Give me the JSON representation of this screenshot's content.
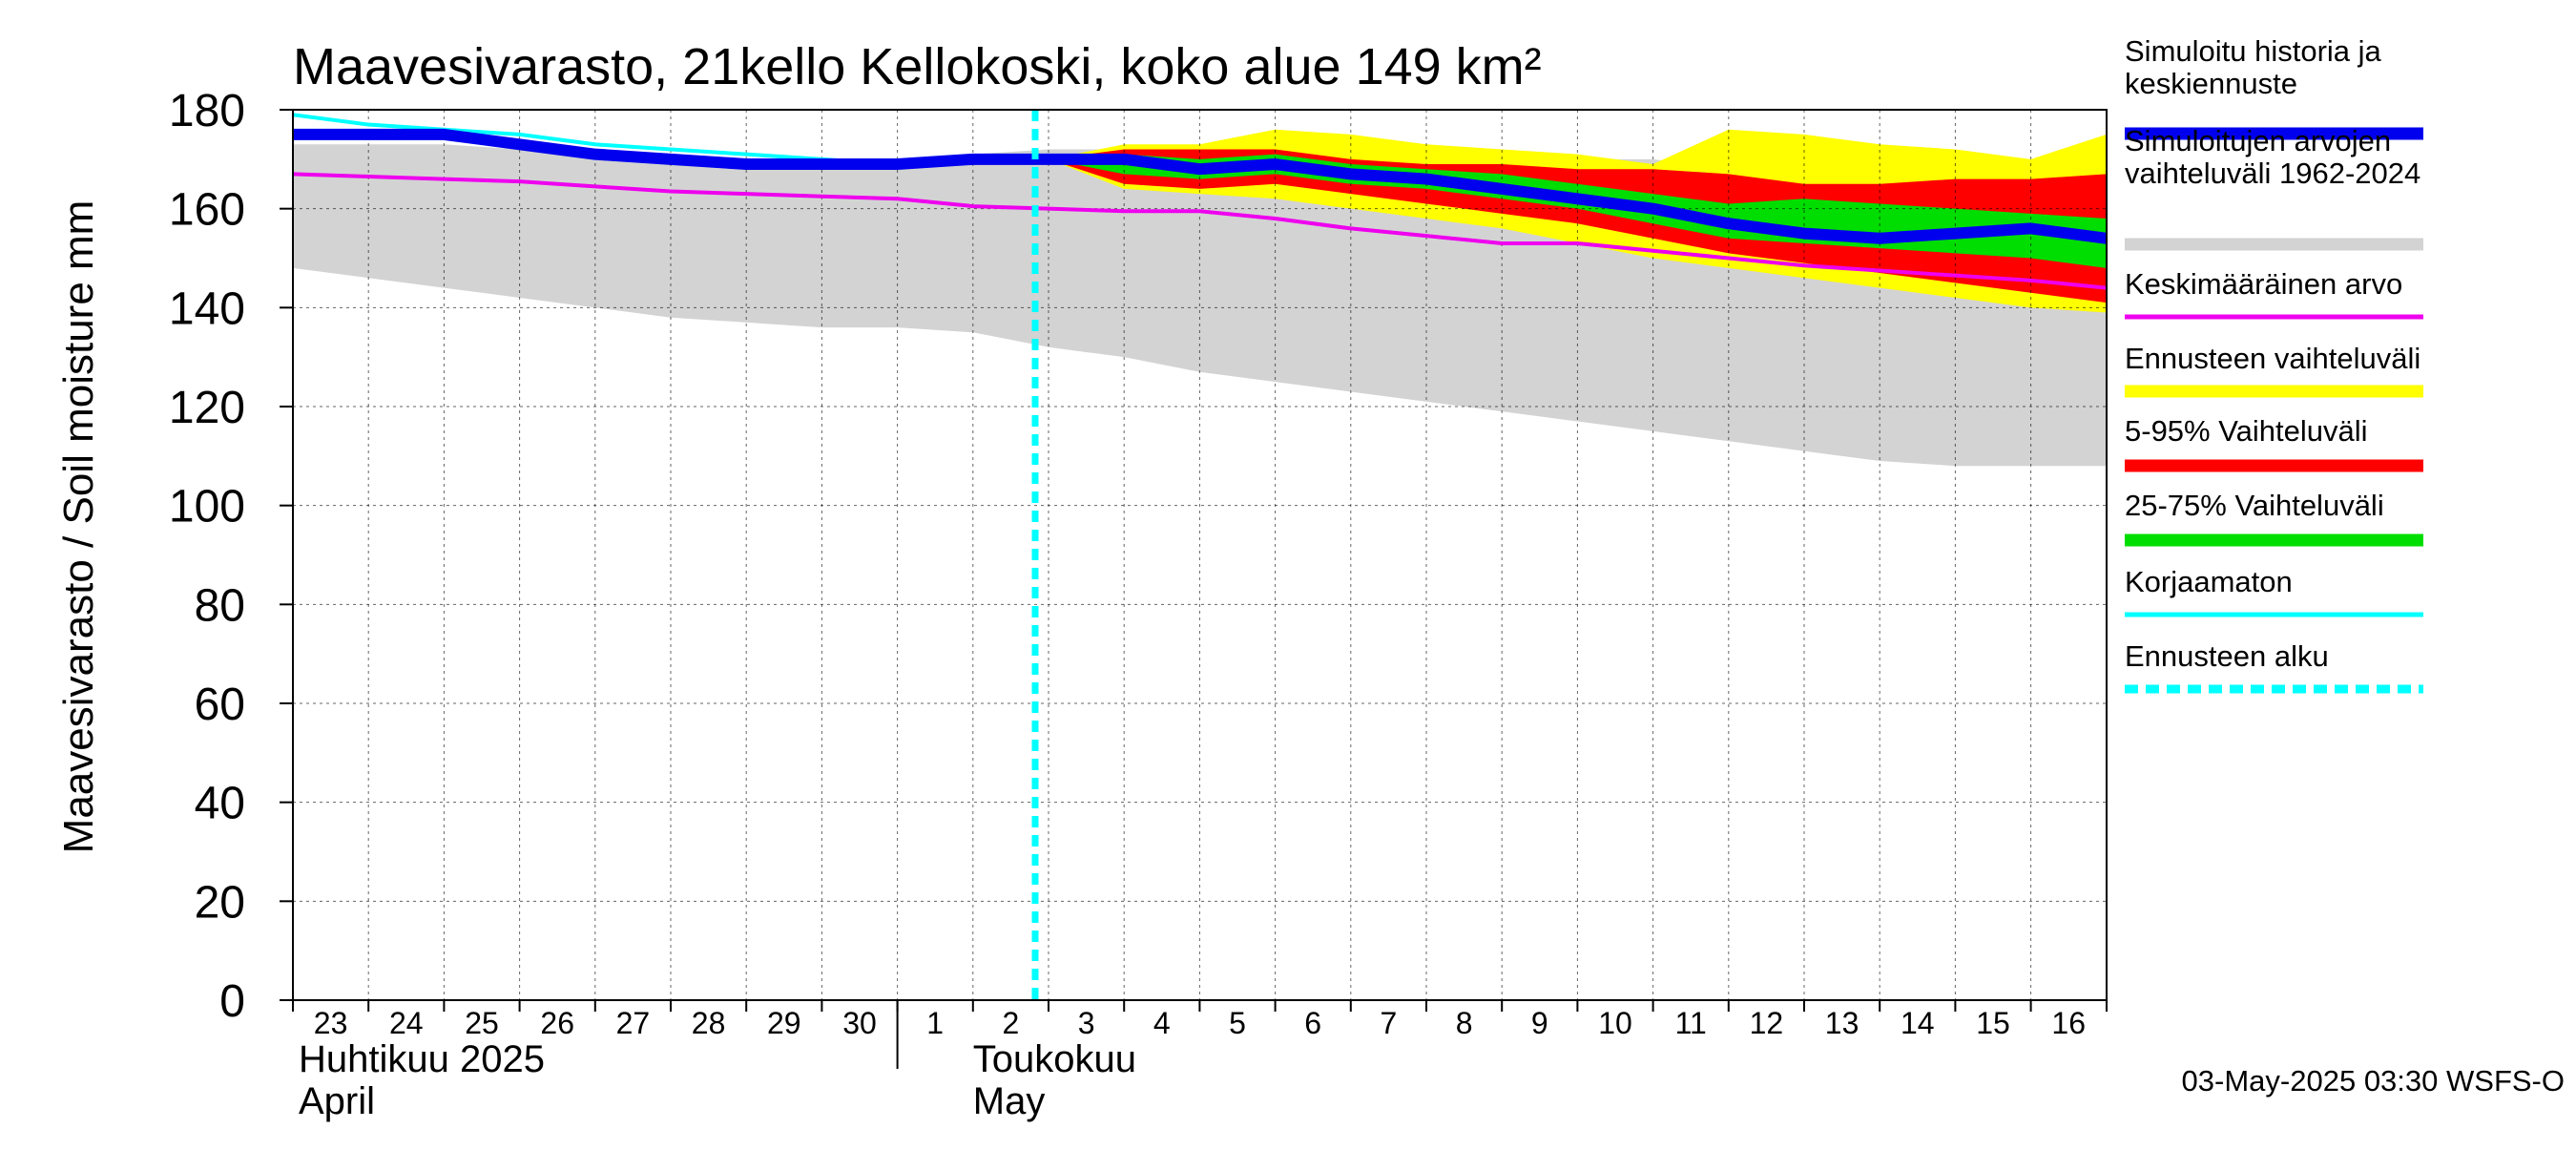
{
  "chart_data": {
    "type": "area",
    "title": "Maavesivarasto, 21kello Kellokoski, koko alue 149 km²",
    "ylabel": "Maavesivarasto / Soil moisture   mm",
    "ylim": [
      0,
      180
    ],
    "yticks": [
      0,
      20,
      40,
      60,
      80,
      100,
      120,
      140,
      160,
      180
    ],
    "x_tick_labels": [
      "23",
      "24",
      "25",
      "26",
      "27",
      "28",
      "29",
      "30",
      "1",
      "2",
      "3",
      "4",
      "5",
      "6",
      "7",
      "8",
      "9",
      "10",
      "11",
      "12",
      "13",
      "14",
      "15",
      "16"
    ],
    "x_dates": [
      "2025-04-23",
      "2025-04-24",
      "2025-04-25",
      "2025-04-26",
      "2025-04-27",
      "2025-04-28",
      "2025-04-29",
      "2025-04-30",
      "2025-05-01",
      "2025-05-02",
      "2025-05-03",
      "2025-05-04",
      "2025-05-05",
      "2025-05-06",
      "2025-05-07",
      "2025-05-08",
      "2025-05-09",
      "2025-05-10",
      "2025-05-11",
      "2025-05-12",
      "2025-05-13",
      "2025-05-14",
      "2025-05-15",
      "2025-05-16"
    ],
    "x_range": [
      "2025-04-23",
      "2025-05-16"
    ],
    "month_labels": [
      {
        "line1": "Huhtikuu  2025",
        "line2": "April"
      },
      {
        "line1": "Toukokuu",
        "line2": "May"
      }
    ],
    "forecast_start": "2025-05-03",
    "grid": true,
    "legend_position": "right",
    "legend": [
      {
        "label": "Simuloitu historia ja\nkeskiennuste",
        "color": "#0000ee",
        "style": "thick-line"
      },
      {
        "label": "Simuloitujen arvojen\nvaihteluväli 1962-2024",
        "color": "#d3d3d3",
        "style": "thick-line"
      },
      {
        "label": "Keskimääräinen arvo",
        "color": "#ee00ee",
        "style": "line"
      },
      {
        "label": "Ennusteen vaihteluväli",
        "color": "#ffff00",
        "style": "thick-line"
      },
      {
        "label": "5-95% Vaihteluväli",
        "color": "#ff0000",
        "style": "thick-line"
      },
      {
        "label": "25-75% Vaihteluväli",
        "color": "#00dd00",
        "style": "thick-line"
      },
      {
        "label": "Korjaamaton",
        "color": "#00ffff",
        "style": "line"
      },
      {
        "label": "Ennusteen alku",
        "color": "#00ffff",
        "style": "dashed"
      }
    ],
    "historical_range": {
      "x": [
        "2025-04-23",
        "2025-04-24",
        "2025-04-25",
        "2025-04-26",
        "2025-04-27",
        "2025-04-28",
        "2025-04-29",
        "2025-04-30",
        "2025-05-01",
        "2025-05-02",
        "2025-05-03",
        "2025-05-04",
        "2025-05-05",
        "2025-05-06",
        "2025-05-07",
        "2025-05-08",
        "2025-05-09",
        "2025-05-10",
        "2025-05-11",
        "2025-05-12",
        "2025-05-13",
        "2025-05-14",
        "2025-05-15",
        "2025-05-16",
        "2025-05-17"
      ],
      "min": [
        148,
        146,
        144,
        142,
        140,
        138,
        137,
        136,
        136,
        135,
        132,
        130,
        127,
        125,
        123,
        121,
        119,
        117,
        115,
        113,
        111,
        109,
        108,
        108,
        108
      ],
      "max": [
        173,
        173,
        173,
        172,
        172,
        171,
        170,
        170,
        170,
        171,
        172,
        172,
        172,
        172,
        171,
        171,
        171,
        170,
        170,
        168,
        166,
        167,
        168,
        169,
        169
      ]
    },
    "series": [
      {
        "name": "Simuloitu historia ja keskiennuste",
        "color": "#0000ee",
        "x": [
          "2025-04-23",
          "2025-04-24",
          "2025-04-25",
          "2025-04-26",
          "2025-04-27",
          "2025-04-28",
          "2025-04-29",
          "2025-04-30",
          "2025-05-01",
          "2025-05-02",
          "2025-05-03",
          "2025-05-04",
          "2025-05-05",
          "2025-05-06",
          "2025-05-07",
          "2025-05-08",
          "2025-05-09",
          "2025-05-10",
          "2025-05-11",
          "2025-05-12",
          "2025-05-13",
          "2025-05-14",
          "2025-05-15",
          "2025-05-16",
          "2025-05-17"
        ],
        "values": [
          175,
          175,
          175,
          173,
          171,
          170,
          169,
          169,
          169,
          170,
          170,
          170,
          168,
          169,
          167,
          166,
          164,
          162,
          160,
          157,
          155,
          154,
          155,
          156,
          154
        ]
      },
      {
        "name": "Keskimääräinen arvo",
        "color": "#ee00ee",
        "x": [
          "2025-04-23",
          "2025-04-24",
          "2025-04-25",
          "2025-04-26",
          "2025-04-27",
          "2025-04-28",
          "2025-04-29",
          "2025-04-30",
          "2025-05-01",
          "2025-05-02",
          "2025-05-03",
          "2025-05-04",
          "2025-05-05",
          "2025-05-06",
          "2025-05-07",
          "2025-05-08",
          "2025-05-09",
          "2025-05-10",
          "2025-05-11",
          "2025-05-12",
          "2025-05-13",
          "2025-05-14",
          "2025-05-15",
          "2025-05-16",
          "2025-05-17"
        ],
        "values": [
          167,
          166.5,
          166,
          165.5,
          164.5,
          163.5,
          163,
          162.5,
          162,
          160.5,
          160,
          159.5,
          159.5,
          158,
          156,
          154.5,
          153,
          153,
          151.5,
          150,
          148.5,
          147.5,
          146.5,
          145.5,
          144
        ]
      },
      {
        "name": "Korjaamaton",
        "color": "#00ffff",
        "x": [
          "2025-04-23",
          "2025-04-24",
          "2025-04-25",
          "2025-04-26",
          "2025-04-27",
          "2025-04-28",
          "2025-04-29",
          "2025-04-30",
          "2025-05-01",
          "2025-05-02",
          "2025-05-03"
        ],
        "values": [
          179,
          177,
          176,
          175,
          173,
          172,
          171,
          170,
          169,
          170,
          170
        ]
      }
    ],
    "forecast_bands": [
      {
        "name": "Ennusteen vaihteluväli",
        "color": "#ffff00",
        "x": [
          "2025-05-03",
          "2025-05-04",
          "2025-05-05",
          "2025-05-06",
          "2025-05-07",
          "2025-05-08",
          "2025-05-09",
          "2025-05-10",
          "2025-05-11",
          "2025-05-12",
          "2025-05-13",
          "2025-05-14",
          "2025-05-15",
          "2025-05-16",
          "2025-05-17"
        ],
        "lower": [
          170,
          164,
          163,
          162,
          160,
          158,
          156,
          153,
          150,
          148,
          146,
          144,
          142,
          140,
          139
        ],
        "upper": [
          170,
          173,
          173,
          176,
          175,
          173,
          172,
          171,
          169,
          176,
          175,
          173,
          172,
          170,
          175
        ]
      },
      {
        "name": "5-95% Vaihteluväli",
        "color": "#ff0000",
        "x": [
          "2025-05-03",
          "2025-05-04",
          "2025-05-05",
          "2025-05-06",
          "2025-05-07",
          "2025-05-08",
          "2025-05-09",
          "2025-05-10",
          "2025-05-11",
          "2025-05-12",
          "2025-05-13",
          "2025-05-14",
          "2025-05-15",
          "2025-05-16",
          "2025-05-17"
        ],
        "lower": [
          170,
          165,
          164,
          165,
          163,
          161,
          159,
          157,
          154,
          151,
          149,
          147,
          145,
          143,
          141
        ],
        "upper": [
          170,
          172,
          172,
          172,
          170,
          169,
          169,
          168,
          168,
          167,
          165,
          165,
          166,
          166,
          167
        ]
      },
      {
        "name": "25-75% Vaihteluväli",
        "color": "#00dd00",
        "x": [
          "2025-05-03",
          "2025-05-04",
          "2025-05-05",
          "2025-05-06",
          "2025-05-07",
          "2025-05-08",
          "2025-05-09",
          "2025-05-10",
          "2025-05-11",
          "2025-05-12",
          "2025-05-13",
          "2025-05-14",
          "2025-05-15",
          "2025-05-16",
          "2025-05-17"
        ],
        "lower": [
          170,
          167,
          166,
          167,
          165,
          164,
          162,
          160,
          157,
          154,
          153,
          152,
          151,
          150,
          148
        ],
        "upper": [
          170,
          171,
          170,
          171,
          169,
          168,
          167,
          165,
          163,
          161,
          162,
          161,
          160,
          159,
          158
        ]
      }
    ]
  },
  "footer": "03-May-2025 03:30 WSFS-O"
}
